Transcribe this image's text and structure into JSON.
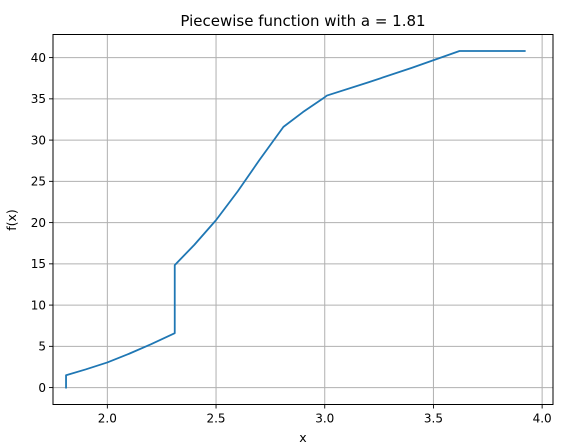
{
  "chart_data": {
    "type": "line",
    "title": "Piecewise function with a = 1.81",
    "xlabel": "x",
    "ylabel": "f(x)",
    "xlim": [
      1.75,
      4.05
    ],
    "ylim": [
      -2.05,
      42.8
    ],
    "xticks": [
      2.0,
      2.5,
      3.0,
      3.5,
      4.0
    ],
    "xtick_labels": [
      "2.0",
      "2.5",
      "3.0",
      "3.5",
      "4.0"
    ],
    "yticks": [
      0,
      5,
      10,
      15,
      20,
      25,
      30,
      35,
      40
    ],
    "ytick_labels": [
      "0",
      "5",
      "10",
      "15",
      "20",
      "25",
      "30",
      "35",
      "40"
    ],
    "grid": true,
    "colors": {
      "series": "#1f77b4",
      "grid": "#b0b0b0",
      "axes": "#000000"
    },
    "series": [
      {
        "x": [
          1.81,
          1.81,
          1.9,
          2.0,
          2.1,
          2.2,
          2.31,
          2.31,
          2.4,
          2.5,
          2.6,
          2.7,
          2.81,
          2.9,
          3.0,
          3.01,
          3.2,
          3.4,
          3.62,
          3.92
        ],
        "y": [
          0.0,
          1.5,
          2.2,
          3.05,
          4.1,
          5.25,
          6.6,
          14.85,
          17.3,
          20.3,
          23.8,
          27.6,
          31.6,
          33.4,
          35.2,
          35.4,
          37.0,
          38.75,
          40.8,
          40.8
        ]
      }
    ]
  }
}
